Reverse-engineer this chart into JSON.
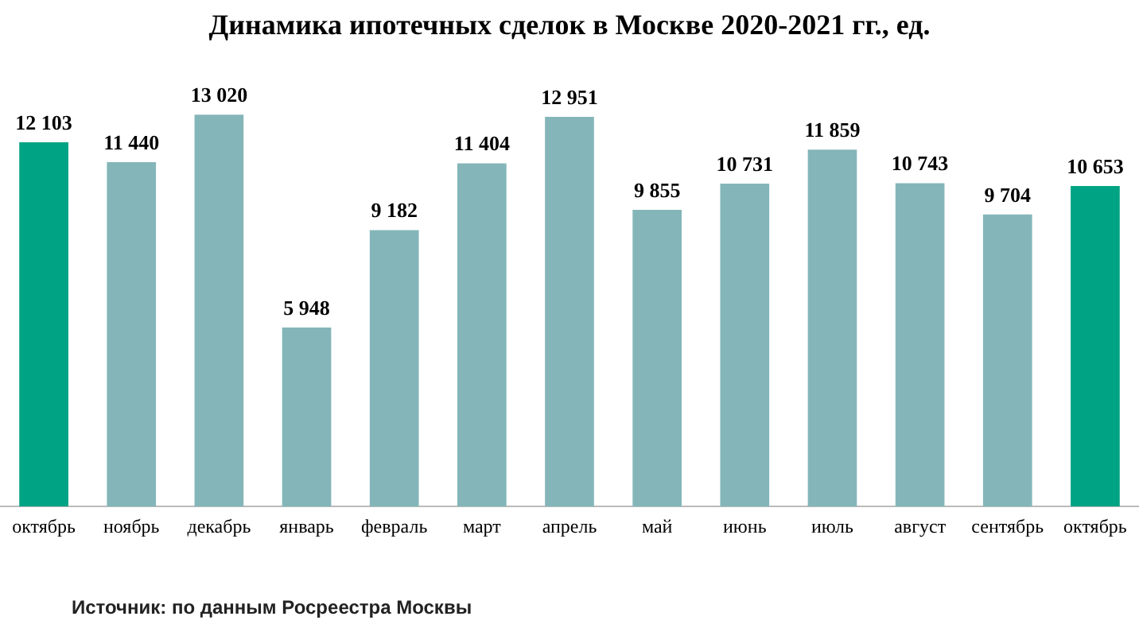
{
  "chart_data": {
    "type": "bar",
    "title": "Динамика ипотечных сделок в Москве 2020-2021 гг., ед.",
    "categories": [
      "октябрь",
      "ноябрь",
      "декабрь",
      "январь",
      "февраль",
      "март",
      "апрель",
      "май",
      "июнь",
      "июль",
      "август",
      "сентябрь",
      "октябрь"
    ],
    "values": [
      12103,
      11440,
      13020,
      5948,
      9182,
      11404,
      12951,
      9855,
      10731,
      11859,
      10743,
      9704,
      10653
    ],
    "value_labels": [
      "12 103",
      "11 440",
      "13 020",
      "5 948",
      "9 182",
      "11 404",
      "12 951",
      "9 855",
      "10 731",
      "11 859",
      "10 743",
      "9 704",
      "10 653"
    ],
    "colors": [
      "#00a383",
      "#84b6b9",
      "#84b6b9",
      "#84b6b9",
      "#84b6b9",
      "#84b6b9",
      "#84b6b9",
      "#84b6b9",
      "#84b6b9",
      "#84b6b9",
      "#84b6b9",
      "#84b6b9",
      "#00a383"
    ],
    "annotations": [
      "Источник: по данным Росреестра Москвы"
    ]
  }
}
